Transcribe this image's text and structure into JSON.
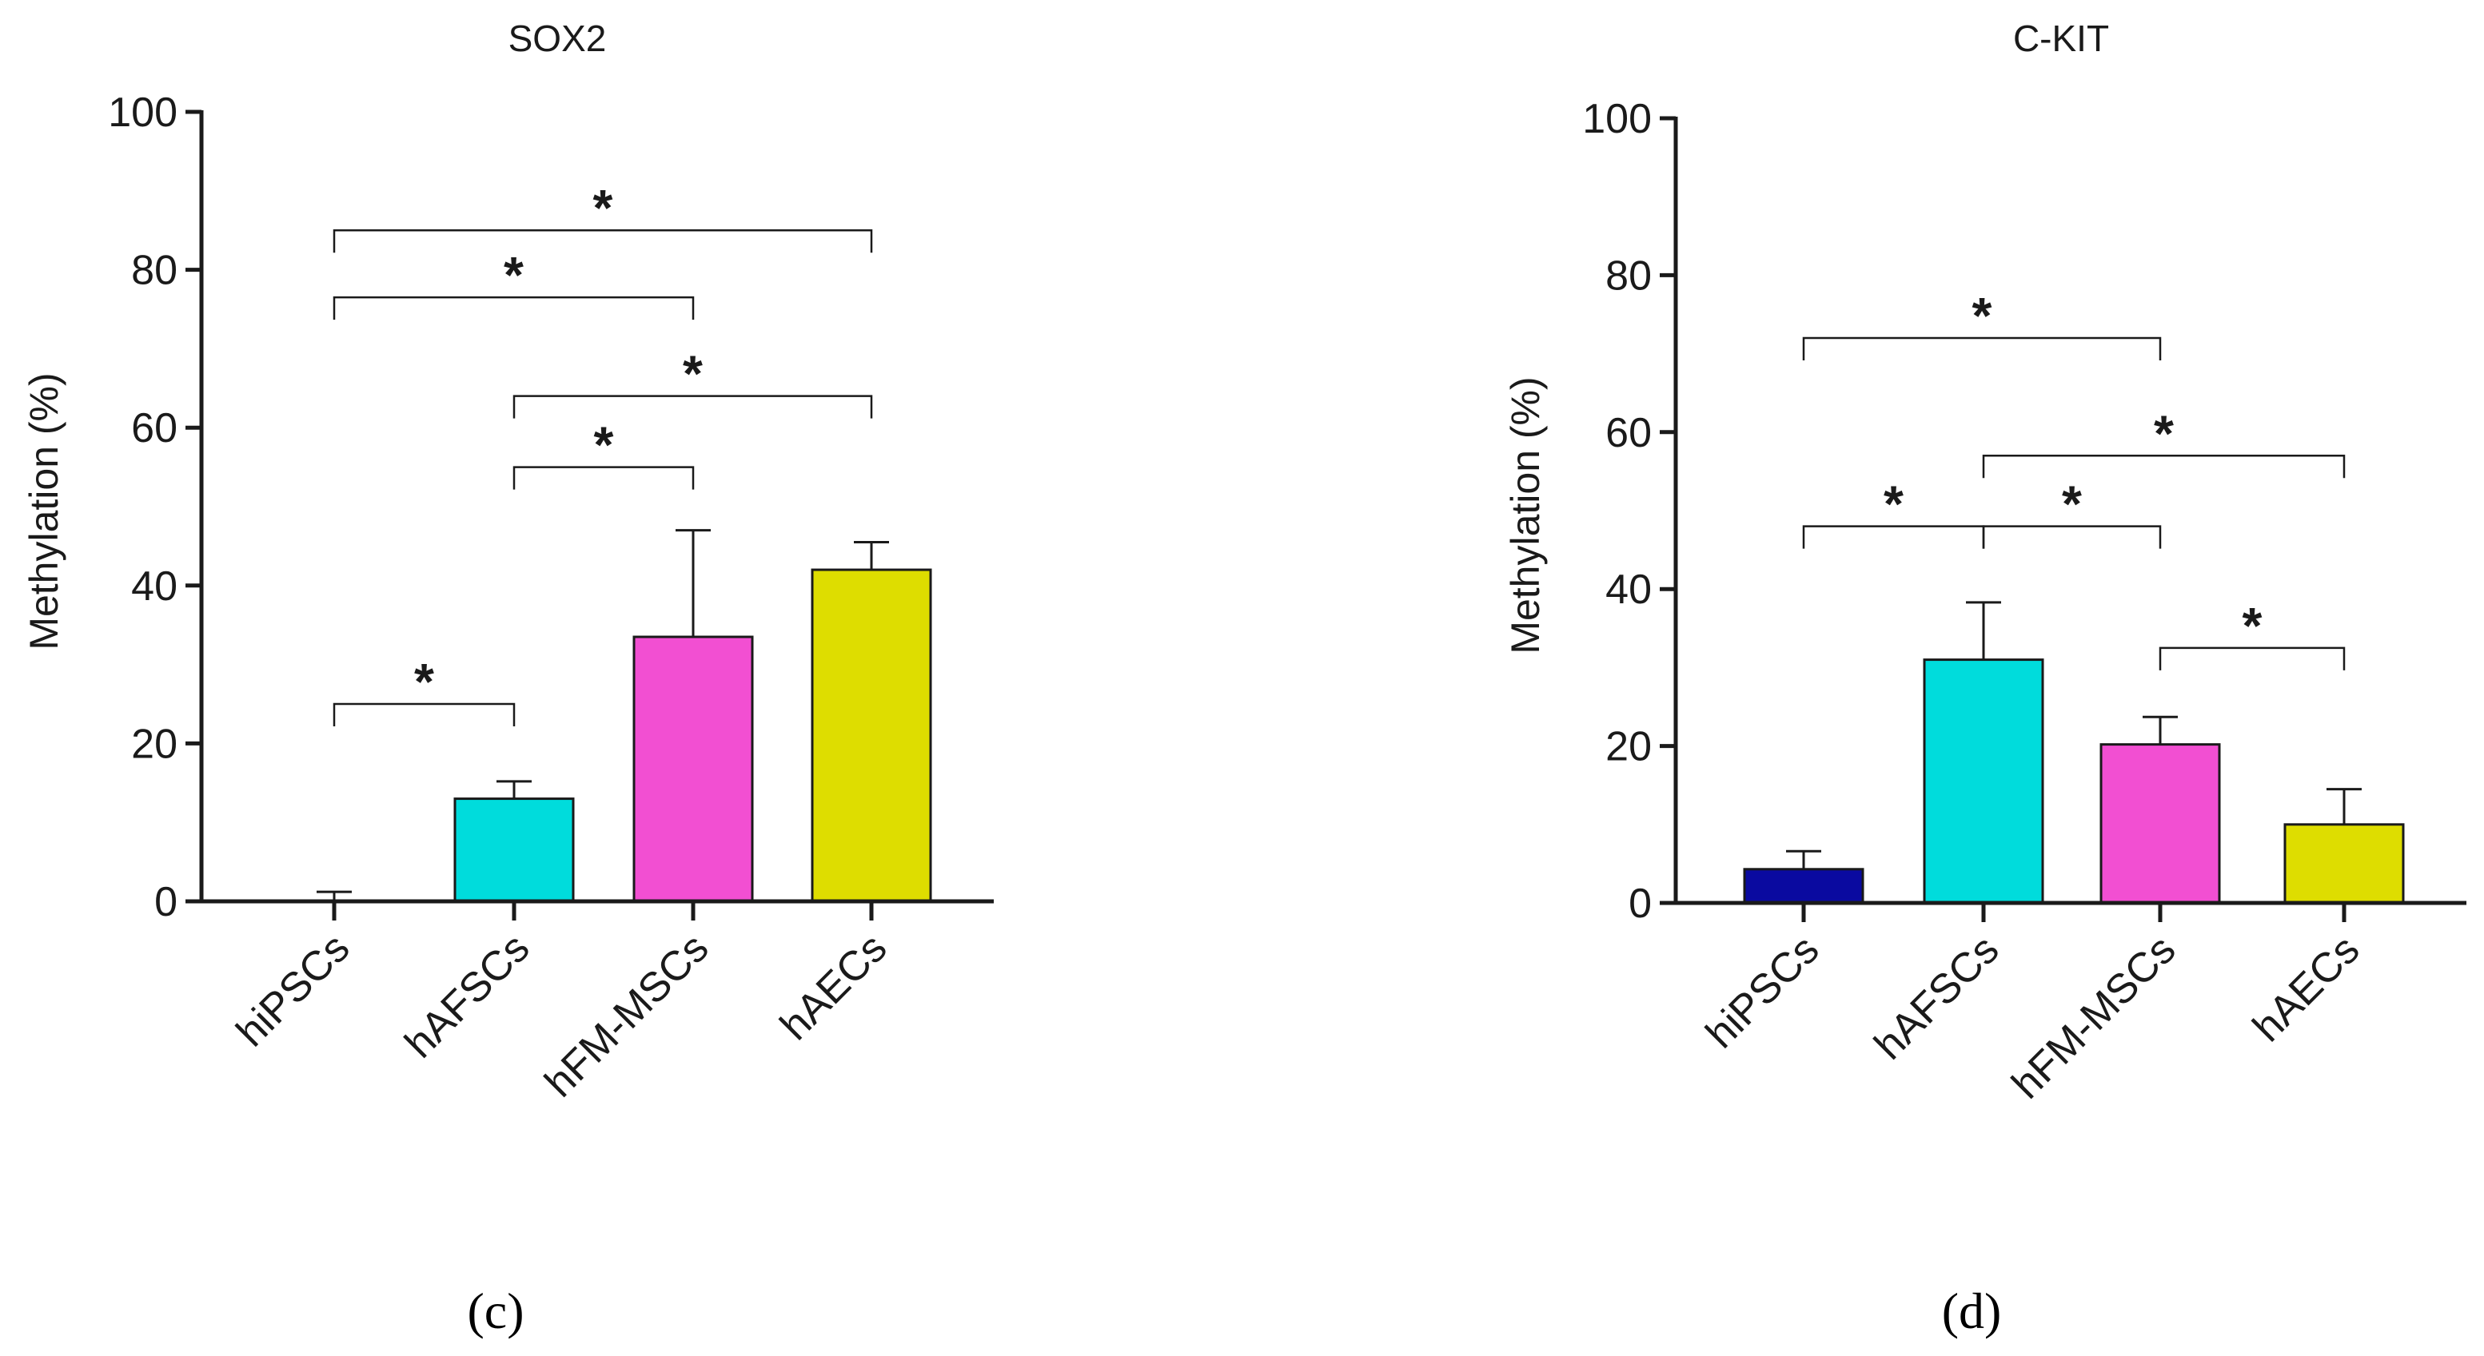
{
  "chart_data": [
    {
      "type": "bar",
      "title": "SOX2",
      "panel_label": "(c)",
      "xlabel": "",
      "ylabel": "Methylation (%)",
      "ylim": [
        0,
        100
      ],
      "yticks": [
        0,
        20,
        40,
        60,
        80,
        100
      ],
      "tick_labels": [
        "0",
        "20",
        "40",
        "60",
        "80",
        "100"
      ],
      "categories": [
        "hiPSCs",
        "hAFSCs",
        "hFM-MSCs",
        "hAECs"
      ],
      "values": [
        0,
        13,
        33.5,
        42
      ],
      "errors": [
        1.2,
        2.2,
        13.5,
        3.5
      ],
      "colors": [
        "#1f1fa8",
        "#00dcdc",
        "#f24fd2",
        "#dedd00"
      ],
      "significance": [
        {
          "from": 0,
          "to": 3,
          "label": "*",
          "level": 85
        },
        {
          "from": 0,
          "to": 2,
          "label": "*",
          "level": 76.5
        },
        {
          "from": 1,
          "to": 3,
          "label": "*",
          "level": 64
        },
        {
          "from": 1,
          "to": 2,
          "label": "*",
          "level": 55
        },
        {
          "from": 0,
          "to": 1,
          "label": "*",
          "level": 25
        }
      ]
    },
    {
      "type": "bar",
      "title": "C-KIT",
      "panel_label": "(d)",
      "xlabel": "",
      "ylabel": "Methylation (%)",
      "ylim": [
        0,
        100
      ],
      "yticks": [
        0,
        20,
        40,
        60,
        80,
        100
      ],
      "tick_labels": [
        "0",
        "20",
        "40",
        "60",
        "80",
        "100"
      ],
      "categories": [
        "hiPSCs",
        "hAFSCs",
        "hFM-MSCs",
        "hAECs"
      ],
      "values": [
        4.3,
        31,
        20.2,
        10
      ],
      "errors": [
        2.3,
        7.3,
        3.5,
        4.5
      ],
      "colors": [
        "#0a0aa0",
        "#00dcdc",
        "#f24fd2",
        "#dedd00"
      ],
      "significance": [
        {
          "from": 0,
          "to": 2,
          "label": "*",
          "level": 72
        },
        {
          "from": 1,
          "to": 3,
          "label": "*",
          "level": 57
        },
        {
          "from": 0,
          "to": 1,
          "label": "*",
          "level": 48
        },
        {
          "from": 1,
          "to": 2,
          "label": "*",
          "level": 48
        },
        {
          "from": 2,
          "to": 3,
          "label": "*",
          "level": 32.5
        }
      ]
    }
  ]
}
